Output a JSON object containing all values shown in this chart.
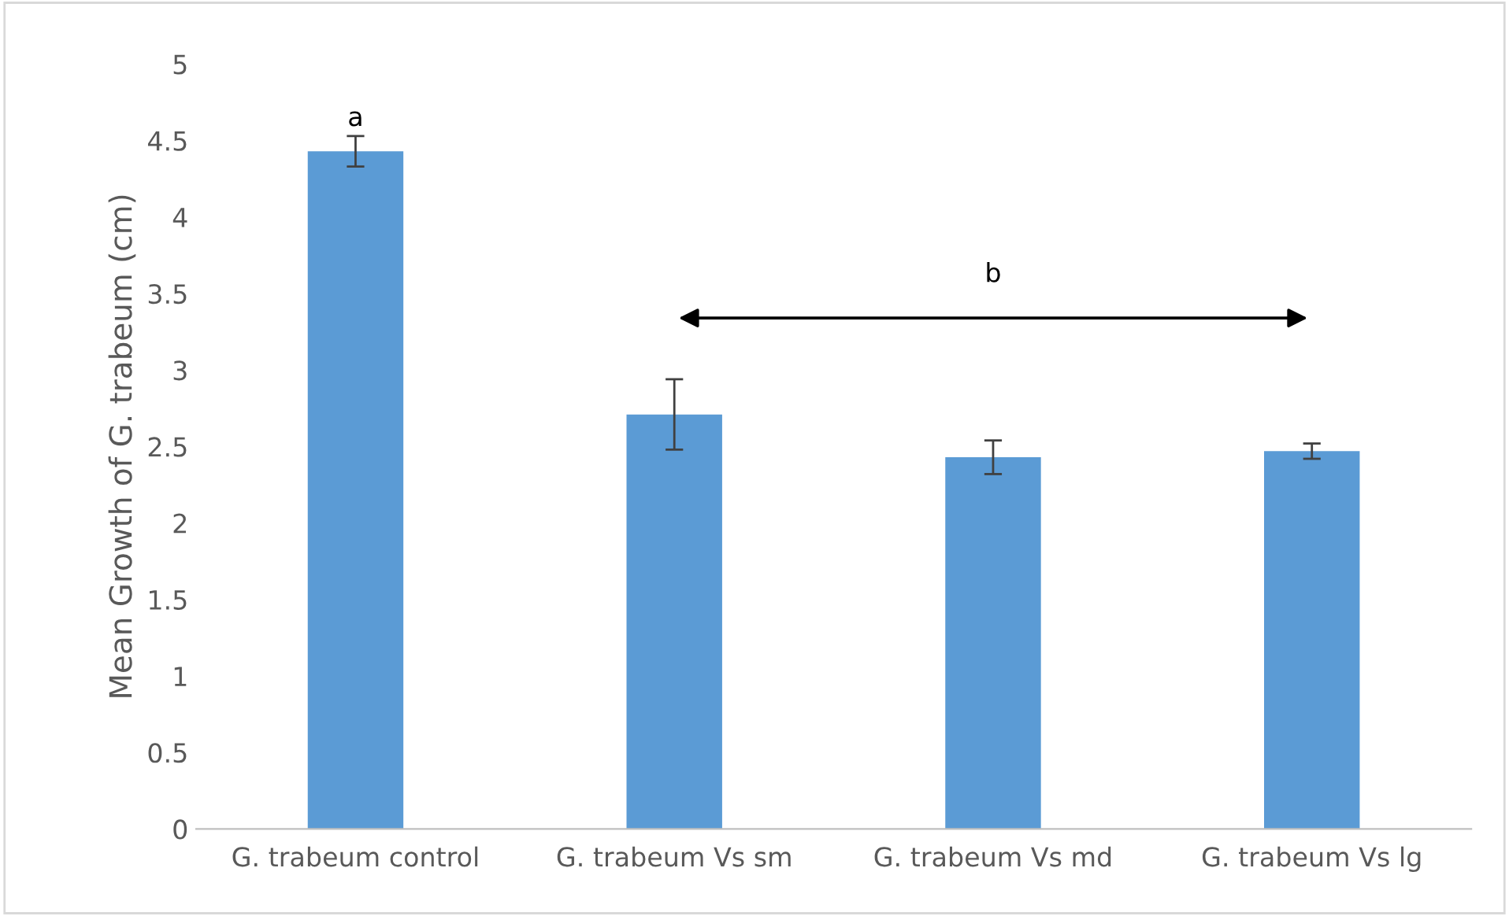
{
  "chart_data": {
    "type": "bar",
    "ylabel": "Mean Growth of G. trabeum (cm)",
    "categories": [
      "G. trabeum control",
      "G. trabeum Vs sm",
      "G. trabeum Vs md",
      "G. trabeum Vs lg"
    ],
    "values": [
      4.43,
      2.71,
      2.43,
      2.47
    ],
    "errors": [
      0.1,
      0.23,
      0.11,
      0.05
    ],
    "color": "#5b9bd5",
    "ylim": [
      0,
      5
    ],
    "yticks": [
      0,
      0.5,
      1,
      1.5,
      2,
      2.5,
      3,
      3.5,
      4,
      4.5,
      5
    ],
    "annotations": [
      "a",
      "b"
    ]
  }
}
